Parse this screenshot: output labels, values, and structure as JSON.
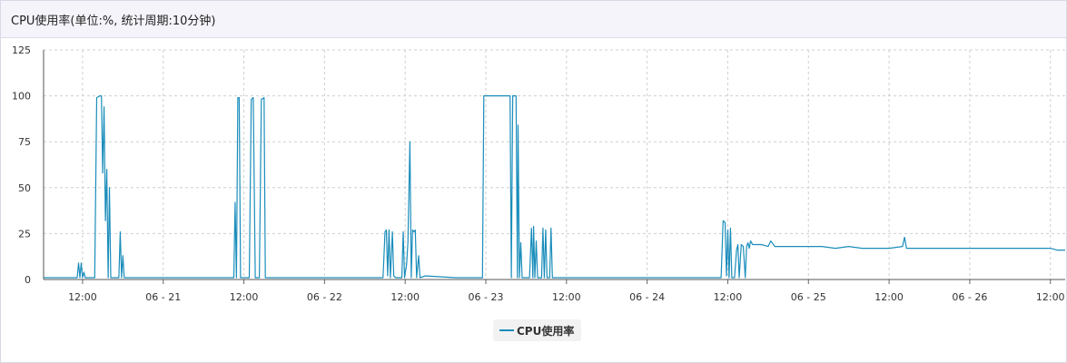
{
  "panel": {
    "title": "CPU使用率(单位:%, 统计周期:10分钟)"
  },
  "chart_data": {
    "type": "line",
    "title": "CPU使用率(单位:%, 统计周期:10分钟)",
    "xlabel": "",
    "ylabel": "",
    "ylim": [
      0,
      125
    ],
    "y_ticks": [
      0,
      25,
      50,
      75,
      100,
      125
    ],
    "x_ticks": [
      {
        "t": 12,
        "label": "12:00"
      },
      {
        "t": 24,
        "label": "06 - 21"
      },
      {
        "t": 36,
        "label": "12:00"
      },
      {
        "t": 48,
        "label": "06 - 22"
      },
      {
        "t": 60,
        "label": "12:00"
      },
      {
        "t": 72,
        "label": "06 - 23"
      },
      {
        "t": 84,
        "label": "12:00"
      },
      {
        "t": 96,
        "label": "06 - 24"
      },
      {
        "t": 108,
        "label": "12:00"
      },
      {
        "t": 120,
        "label": "06 - 25"
      },
      {
        "t": 132,
        "label": "12:00"
      },
      {
        "t": 144,
        "label": "06 - 26"
      },
      {
        "t": 156,
        "label": "12:00"
      }
    ],
    "xlim": [
      6.2,
      158.2
    ],
    "grid": true,
    "legend_position": "bottom-center",
    "series": [
      {
        "name": "CPU使用率",
        "color": "#1a8dbb",
        "points": [
          [
            6.2,
            1
          ],
          [
            11.2,
            1
          ],
          [
            11.4,
            9
          ],
          [
            11.6,
            1
          ],
          [
            11.8,
            9
          ],
          [
            12.0,
            1
          ],
          [
            12.2,
            4
          ],
          [
            12.4,
            1
          ],
          [
            13.8,
            1
          ],
          [
            14.1,
            99
          ],
          [
            14.6,
            100
          ],
          [
            14.8,
            100
          ],
          [
            15.0,
            58
          ],
          [
            15.2,
            94
          ],
          [
            15.4,
            32
          ],
          [
            15.6,
            60
          ],
          [
            15.8,
            1
          ],
          [
            16.0,
            50
          ],
          [
            16.2,
            1
          ],
          [
            17.4,
            1
          ],
          [
            17.6,
            26
          ],
          [
            17.8,
            1
          ],
          [
            18.0,
            13
          ],
          [
            18.2,
            1
          ],
          [
            34.5,
            1
          ],
          [
            34.7,
            42
          ],
          [
            34.9,
            1
          ],
          [
            35.1,
            99
          ],
          [
            35.3,
            99
          ],
          [
            35.5,
            1
          ],
          [
            36.8,
            1
          ],
          [
            37.1,
            98
          ],
          [
            37.4,
            99
          ],
          [
            37.7,
            1
          ],
          [
            38.3,
            1
          ],
          [
            38.6,
            98
          ],
          [
            39.0,
            99
          ],
          [
            39.2,
            1
          ],
          [
            49.5,
            1
          ],
          [
            56.7,
            1
          ],
          [
            57.0,
            26
          ],
          [
            57.2,
            27
          ],
          [
            57.4,
            2
          ],
          [
            57.6,
            27
          ],
          [
            57.8,
            1
          ],
          [
            58.1,
            26
          ],
          [
            58.3,
            2
          ],
          [
            58.6,
            1
          ],
          [
            59.5,
            1
          ],
          [
            59.7,
            26
          ],
          [
            59.9,
            1
          ],
          [
            60.2,
            8
          ],
          [
            60.4,
            20
          ],
          [
            60.7,
            75
          ],
          [
            60.9,
            1
          ],
          [
            61.1,
            27
          ],
          [
            61.3,
            26
          ],
          [
            61.5,
            27
          ],
          [
            61.7,
            1
          ],
          [
            62.0,
            13
          ],
          [
            62.2,
            1
          ],
          [
            63.0,
            2
          ],
          [
            67.5,
            1
          ],
          [
            71.5,
            1
          ],
          [
            71.7,
            100
          ],
          [
            75.6,
            100
          ],
          [
            75.8,
            1
          ],
          [
            76.0,
            100
          ],
          [
            76.5,
            100
          ],
          [
            76.7,
            1
          ],
          [
            76.8,
            84
          ],
          [
            77.0,
            1
          ],
          [
            77.2,
            20
          ],
          [
            77.4,
            1
          ],
          [
            78.5,
            1
          ],
          [
            78.8,
            28
          ],
          [
            79.0,
            1
          ],
          [
            79.1,
            29
          ],
          [
            79.3,
            1
          ],
          [
            79.5,
            21
          ],
          [
            79.7,
            1
          ],
          [
            80.3,
            1
          ],
          [
            80.5,
            28
          ],
          [
            80.7,
            1
          ],
          [
            80.9,
            27
          ],
          [
            81.1,
            1
          ],
          [
            81.5,
            1
          ],
          [
            81.7,
            28
          ],
          [
            81.9,
            1
          ],
          [
            84.5,
            1
          ],
          [
            96.0,
            1
          ],
          [
            107.0,
            1
          ],
          [
            107.3,
            32
          ],
          [
            107.6,
            31
          ],
          [
            107.8,
            2
          ],
          [
            108.0,
            27
          ],
          [
            108.2,
            1
          ],
          [
            108.4,
            28
          ],
          [
            108.6,
            1
          ],
          [
            109.0,
            1
          ],
          [
            109.3,
            16
          ],
          [
            109.5,
            19
          ],
          [
            109.7,
            1
          ],
          [
            110.0,
            19
          ],
          [
            110.3,
            18
          ],
          [
            110.6,
            1
          ],
          [
            110.8,
            18
          ],
          [
            111.0,
            20
          ],
          [
            111.2,
            17
          ],
          [
            111.4,
            21
          ],
          [
            111.7,
            19
          ],
          [
            112.0,
            19
          ],
          [
            113.0,
            19
          ],
          [
            114.0,
            18
          ],
          [
            114.4,
            21
          ],
          [
            115.0,
            18
          ],
          [
            116.0,
            18
          ],
          [
            117.0,
            18
          ],
          [
            118.0,
            18
          ],
          [
            120.0,
            18
          ],
          [
            122.0,
            18
          ],
          [
            124.0,
            17
          ],
          [
            126.0,
            18
          ],
          [
            128.0,
            17
          ],
          [
            130.0,
            17
          ],
          [
            132.0,
            17
          ],
          [
            134.0,
            18
          ],
          [
            134.3,
            23
          ],
          [
            134.6,
            17
          ],
          [
            136.0,
            17
          ],
          [
            138.0,
            17
          ],
          [
            140.0,
            17
          ],
          [
            142.0,
            17
          ],
          [
            144.0,
            17
          ],
          [
            146.0,
            17
          ],
          [
            148.0,
            17
          ],
          [
            150.0,
            17
          ],
          [
            152.0,
            17
          ],
          [
            154.0,
            17
          ],
          [
            156.0,
            17
          ],
          [
            157.0,
            16
          ],
          [
            158.2,
            16
          ]
        ]
      }
    ]
  },
  "legend": {
    "label": "CPU使用率"
  }
}
